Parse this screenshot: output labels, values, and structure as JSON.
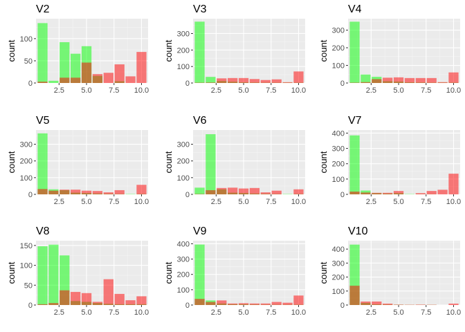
{
  "chart_data": [
    {
      "type": "bar",
      "title": "V2",
      "ylabel": "count",
      "xlabel": "",
      "x": [
        1,
        2,
        3,
        4,
        5,
        6,
        7,
        8,
        9,
        10
      ],
      "ylim": [
        0,
        145
      ],
      "yticks": [
        0,
        50,
        100
      ],
      "xlim": [
        0.4,
        10.6
      ],
      "xticks": [
        "2.5",
        "5.0",
        "7.5",
        "10.0"
      ],
      "series": [
        {
          "values": [
            135,
            5,
            92,
            66,
            83,
            16,
            0,
            4,
            0,
            0
          ],
          "color": "#00ff00"
        },
        {
          "values": [
            3,
            0,
            12,
            12,
            46,
            20,
            23,
            42,
            15,
            70
          ],
          "color": "#ff0000"
        }
      ]
    },
    {
      "type": "bar",
      "title": "V3",
      "ylabel": "count",
      "xlabel": "",
      "x": [
        1,
        2,
        3,
        4,
        5,
        6,
        7,
        8,
        9,
        10
      ],
      "ylim": [
        0,
        390
      ],
      "yticks": [
        0,
        100,
        200,
        300
      ],
      "xlim": [
        0.4,
        10.6
      ],
      "xticks": [
        "2.5",
        "5.0",
        "7.5",
        "10.0"
      ],
      "series": [
        {
          "values": [
            372,
            37,
            12,
            8,
            4,
            3,
            2,
            2,
            2,
            2
          ],
          "color": "#00ff00"
        },
        {
          "values": [
            2,
            3,
            28,
            30,
            30,
            24,
            18,
            22,
            5,
            70
          ],
          "color": "#ff0000"
        }
      ]
    },
    {
      "type": "bar",
      "title": "V4",
      "ylabel": "count",
      "xlabel": "",
      "x": [
        1,
        2,
        3,
        4,
        5,
        6,
        7,
        8,
        9,
        10
      ],
      "ylim": [
        0,
        365
      ],
      "yticks": [
        0,
        100,
        200,
        300
      ],
      "xlim": [
        0.4,
        10.6
      ],
      "xticks": [
        "2.5",
        "5.0",
        "7.5",
        "10.0"
      ],
      "series": [
        {
          "values": [
            348,
            48,
            35,
            10,
            8,
            4,
            3,
            2,
            2,
            2
          ],
          "color": "#00ff00"
        },
        {
          "values": [
            2,
            5,
            22,
            30,
            32,
            28,
            28,
            28,
            5,
            60
          ],
          "color": "#ff0000"
        }
      ]
    },
    {
      "type": "bar",
      "title": "V5",
      "ylabel": "count",
      "xlabel": "",
      "x": [
        1,
        2,
        3,
        4,
        5,
        6,
        7,
        8,
        9,
        10
      ],
      "ylim": [
        0,
        385
      ],
      "yticks": [
        0,
        100,
        200,
        300
      ],
      "xlim": [
        0.4,
        10.6
      ],
      "xticks": [
        "2.5",
        "5.0",
        "7.5",
        "10.0"
      ],
      "series": [
        {
          "values": [
            365,
            30,
            25,
            10,
            8,
            5,
            3,
            2,
            2,
            2
          ],
          "color": "#00ff00"
        },
        {
          "values": [
            32,
            22,
            28,
            28,
            22,
            20,
            12,
            25,
            0,
            57
          ],
          "color": "#ff0000"
        }
      ]
    },
    {
      "type": "bar",
      "title": "V6",
      "ylabel": "count",
      "xlabel": "",
      "x": [
        1,
        2,
        3,
        4,
        5,
        6,
        7,
        8,
        9,
        10
      ],
      "ylim": [
        0,
        385
      ],
      "yticks": [
        0,
        100,
        200,
        300
      ],
      "xlim": [
        0.4,
        10.6
      ],
      "xticks": [
        "2.5",
        "5.0",
        "7.5",
        "10.0"
      ],
      "series": [
        {
          "values": [
            40,
            360,
            30,
            10,
            8,
            5,
            3,
            2,
            2,
            2
          ],
          "color": "#00ff00"
        },
        {
          "values": [
            2,
            25,
            38,
            40,
            35,
            38,
            12,
            22,
            0,
            30
          ],
          "color": "#ff0000"
        }
      ]
    },
    {
      "type": "bar",
      "title": "V7",
      "ylabel": "count",
      "xlabel": "",
      "x": [
        1,
        2,
        3,
        4,
        5,
        6,
        7,
        8,
        9,
        10
      ],
      "ylim": [
        0,
        420
      ],
      "yticks": [
        0,
        100,
        200,
        300,
        400
      ],
      "xlim": [
        0.4,
        10.6
      ],
      "xticks": [
        "2.5",
        "5.0",
        "7.5",
        "10.0"
      ],
      "series": [
        {
          "values": [
            385,
            25,
            8,
            5,
            8,
            2,
            1,
            1,
            0,
            0
          ],
          "color": "#00ff00"
        },
        {
          "values": [
            18,
            12,
            10,
            10,
            22,
            0,
            8,
            22,
            30,
            135
          ],
          "color": "#ff0000"
        }
      ]
    },
    {
      "type": "bar",
      "title": "V8",
      "ylabel": "count",
      "xlabel": "",
      "x": [
        1,
        2,
        3,
        4,
        5,
        6,
        7,
        8,
        9,
        10
      ],
      "ylim": [
        0,
        162
      ],
      "yticks": [
        0,
        50,
        100,
        150
      ],
      "xlim": [
        0.4,
        10.6
      ],
      "xticks": [
        "2.5",
        "5.0",
        "7.5",
        "10.0"
      ],
      "series": [
        {
          "values": [
            148,
            152,
            125,
            10,
            8,
            5,
            3,
            2,
            2,
            2
          ],
          "color": "#00ff00"
        },
        {
          "values": [
            2,
            5,
            37,
            33,
            30,
            8,
            65,
            28,
            12,
            22
          ],
          "color": "#ff0000"
        }
      ]
    },
    {
      "type": "bar",
      "title": "V9",
      "ylabel": "count",
      "xlabel": "",
      "x": [
        1,
        2,
        3,
        4,
        5,
        6,
        7,
        8,
        9,
        10
      ],
      "ylim": [
        0,
        420
      ],
      "yticks": [
        0,
        100,
        200,
        300,
        400
      ],
      "xlim": [
        0.4,
        10.6
      ],
      "xticks": [
        "2.5",
        "5.0",
        "7.5",
        "10.0"
      ],
      "series": [
        {
          "values": [
            395,
            30,
            10,
            5,
            5,
            3,
            2,
            2,
            2,
            2
          ],
          "color": "#00ff00"
        },
        {
          "values": [
            40,
            20,
            30,
            10,
            12,
            10,
            10,
            20,
            15,
            62
          ],
          "color": "#ff0000"
        }
      ]
    },
    {
      "type": "bar",
      "title": "V10",
      "ylabel": "count",
      "xlabel": "",
      "x": [
        1,
        2,
        3,
        4,
        5,
        6,
        7,
        8,
        9,
        10
      ],
      "ylim": [
        0,
        460
      ],
      "yticks": [
        0,
        100,
        200,
        300,
        400
      ],
      "xlim": [
        0.4,
        10.6
      ],
      "xticks": [
        "2.5",
        "5.0",
        "7.5",
        "10.0"
      ],
      "series": [
        {
          "values": [
            432,
            15,
            5,
            3,
            2,
            1,
            1,
            1,
            0,
            0
          ],
          "color": "#00ff00"
        },
        {
          "values": [
            138,
            25,
            25,
            10,
            3,
            2,
            3,
            2,
            0,
            10
          ],
          "color": "#ff0000"
        }
      ]
    }
  ],
  "style": {
    "panel_background": "#ebebeb",
    "grid_major": "#ffffff",
    "grid_minor": "#f5f5f5",
    "tick_color": "#333333",
    "bar_opacity": 0.5
  }
}
